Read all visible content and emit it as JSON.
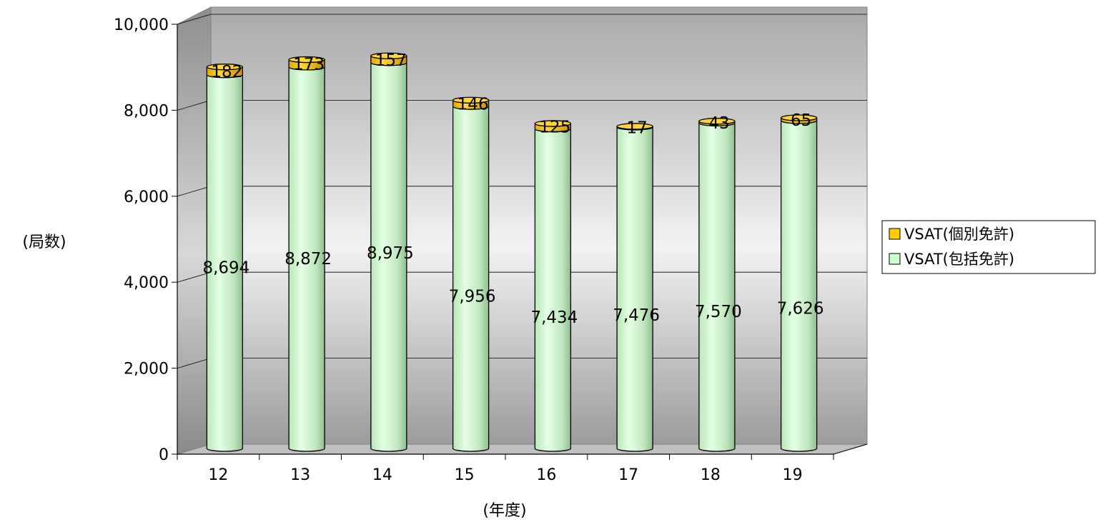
{
  "chart_data": {
    "type": "bar",
    "stacked": true,
    "three_d": true,
    "categories": [
      "12",
      "13",
      "14",
      "15",
      "16",
      "17",
      "18",
      "19"
    ],
    "series": [
      {
        "name": "VSAT(包括免許)",
        "values": [
          8694,
          8872,
          8975,
          7956,
          7434,
          7476,
          7570,
          7626
        ],
        "color": "#ccffcc"
      },
      {
        "name": "VSAT(個別免許)",
        "values": [
          182,
          173,
          157,
          146,
          125,
          17,
          43,
          65
        ],
        "color": "#ffcc00"
      }
    ],
    "value_labels": {
      "VSAT(包括免許)": [
        "8,694",
        "8,872",
        "8,975",
        "7,956",
        "7,434",
        "7,476",
        "7,570",
        "7,626"
      ],
      "VSAT(個別免許)": [
        "182",
        "173",
        "157",
        "146",
        "125",
        "17",
        "43",
        "65"
      ]
    },
    "y_ticks": [
      "0",
      "2,000",
      "4,000",
      "6,000",
      "8,000",
      "10,000"
    ],
    "ylim": [
      0,
      10000
    ],
    "xlabel": "(年度)",
    "ylabel": "(局数)",
    "grid": true,
    "legend_position": "right"
  }
}
